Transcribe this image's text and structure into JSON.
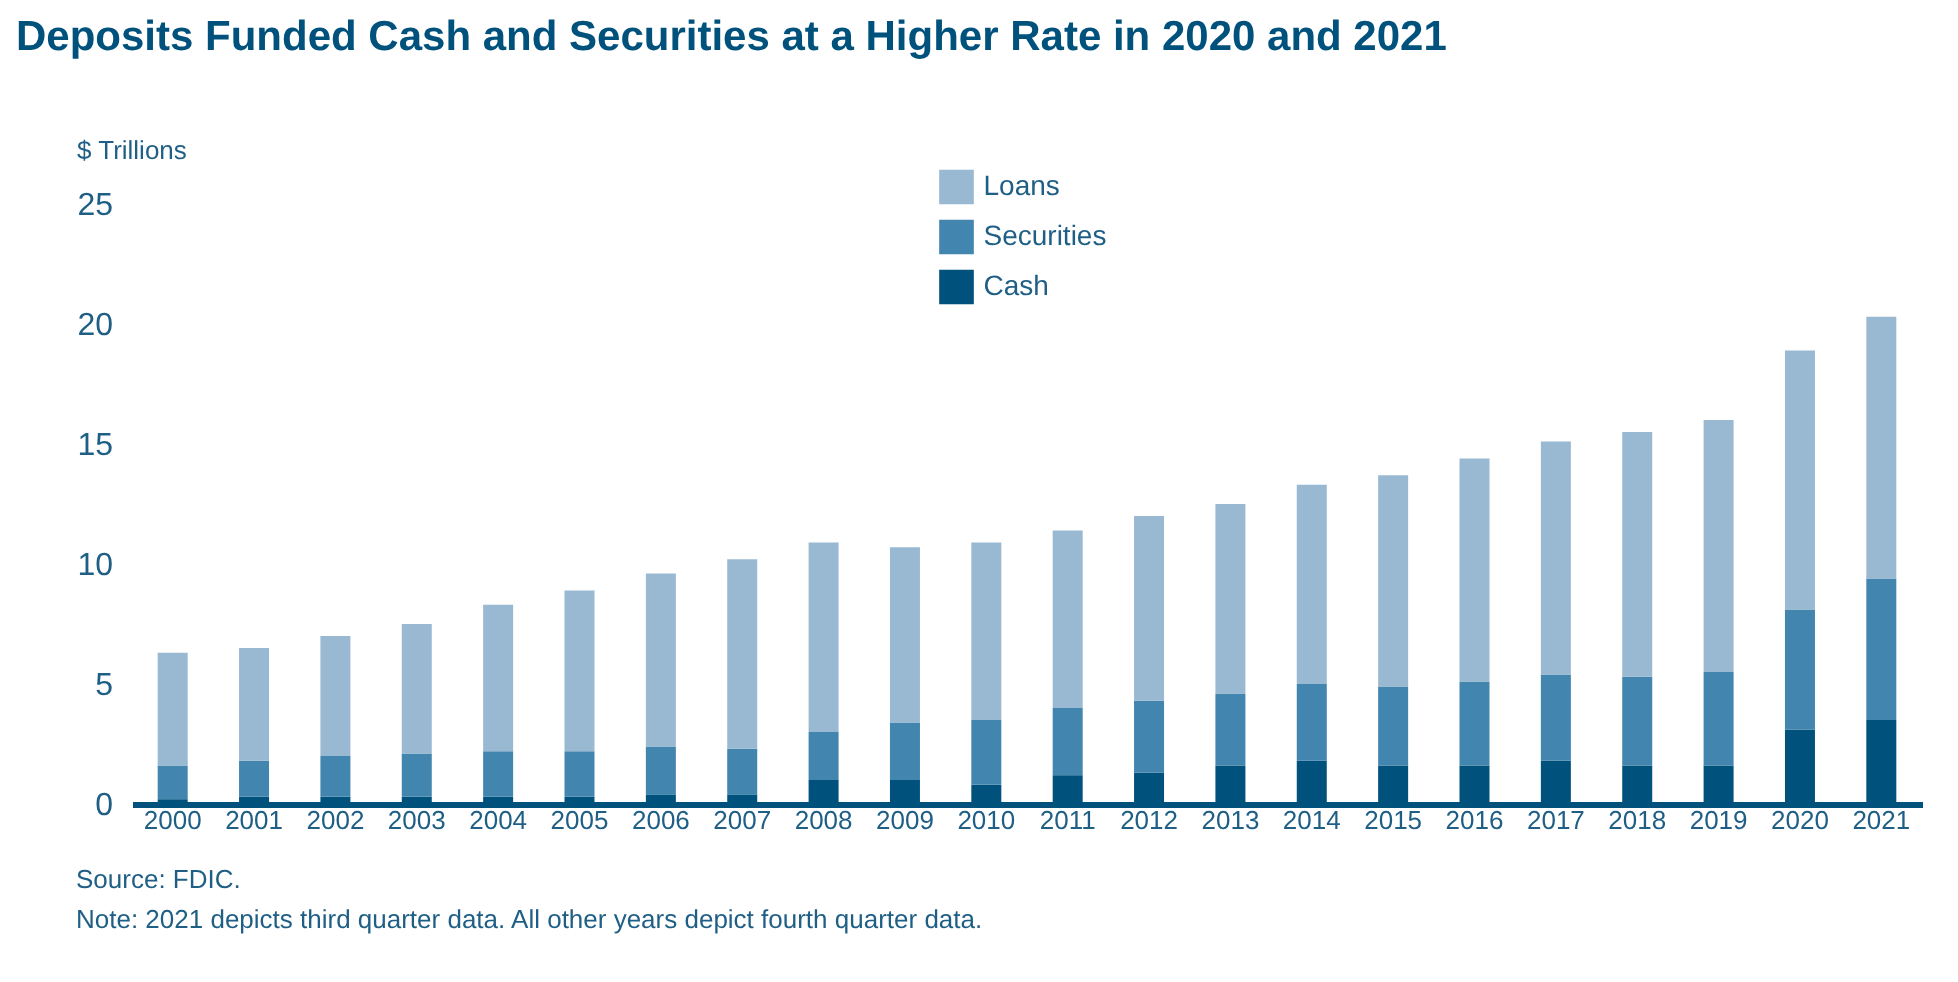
{
  "chart_data": {
    "type": "bar",
    "title": "Deposits Funded Cash and Securities at a Higher Rate in 2020 and 2021",
    "ylabel": "$ Trillions",
    "categories": [
      "2000",
      "2001",
      "2002",
      "2003",
      "2004",
      "2005",
      "2006",
      "2007",
      "2008",
      "2009",
      "2010",
      "2011",
      "2012",
      "2013",
      "2014",
      "2015",
      "2016",
      "2017",
      "2018",
      "2019",
      "2020",
      "2021"
    ],
    "stacked": true,
    "series": [
      {
        "name": "Cash",
        "color": "#00527d",
        "values": [
          0.2,
          0.3,
          0.3,
          0.3,
          0.3,
          0.3,
          0.4,
          0.4,
          1.0,
          1.0,
          0.8,
          1.2,
          1.3,
          1.6,
          1.8,
          1.6,
          1.6,
          1.8,
          1.6,
          1.6,
          3.1,
          3.5
        ]
      },
      {
        "name": "Securities",
        "color": "#4285ae",
        "values": [
          1.4,
          1.5,
          1.7,
          1.8,
          1.9,
          1.9,
          2.0,
          1.9,
          2.0,
          2.4,
          2.7,
          2.8,
          3.0,
          3.0,
          3.2,
          3.3,
          3.5,
          3.6,
          3.7,
          3.9,
          5.0,
          5.9
        ]
      },
      {
        "name": "Loans",
        "color": "#99b8d2",
        "values": [
          4.7,
          4.7,
          5.0,
          5.4,
          6.1,
          6.7,
          7.2,
          7.9,
          7.9,
          7.3,
          7.4,
          7.4,
          7.7,
          7.9,
          8.3,
          8.8,
          9.3,
          9.7,
          10.2,
          10.5,
          10.8,
          10.9
        ]
      }
    ],
    "ylim": [
      0,
      25
    ],
    "yticks": [
      0,
      5,
      10,
      15,
      20,
      25
    ],
    "grid": false,
    "legend": "top",
    "annotations": [
      "Source: FDIC.",
      "Note: 2021 depicts third quarter data. All other years depict fourth quarter data."
    ]
  }
}
